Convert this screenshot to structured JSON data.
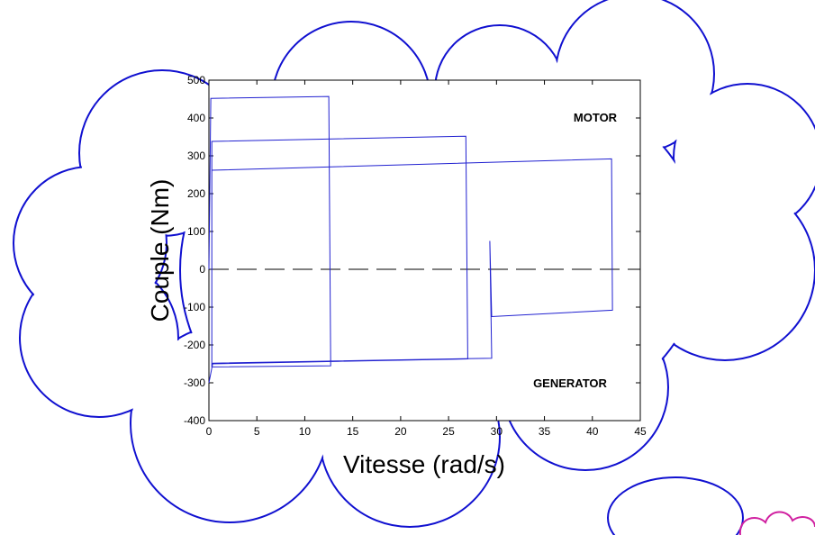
{
  "chart_data": {
    "type": "line",
    "xlabel": "Vitesse (rad/s)",
    "ylabel": "Couple (Nm)",
    "annotations": [
      "MOTOR",
      "GENERATOR"
    ],
    "x": [
      0,
      0.2,
      12.5,
      12.7,
      0.3,
      0.3,
      26.8,
      27.0,
      0.3,
      0.3,
      42.0,
      42.1,
      29.5,
      29.3,
      29.5,
      0.4,
      0
    ],
    "series": [
      {
        "color": "#2020d0",
        "values": [
          0,
          452,
          457,
          -255,
          -258,
          338,
          352,
          -237,
          -250,
          262,
          292,
          -108,
          -125,
          75,
          -235,
          -248,
          -300
        ]
      }
    ],
    "xlim": [
      0,
      45
    ],
    "xticks": [
      0,
      5,
      10,
      15,
      20,
      25,
      30,
      35,
      40,
      45
    ],
    "ylim": [
      -400,
      500
    ],
    "yticks": [
      -400,
      -300,
      -200,
      -100,
      0,
      100,
      200,
      300,
      400,
      500
    ],
    "reference_line": 0
  }
}
